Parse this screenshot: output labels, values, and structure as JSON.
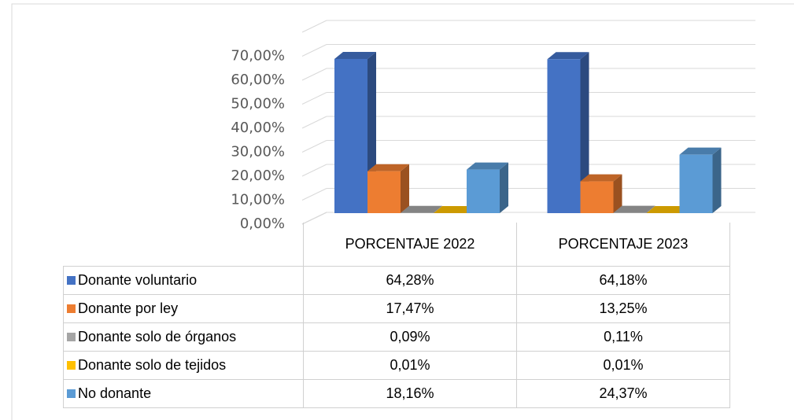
{
  "chart_data": {
    "type": "bar3d",
    "categories": [
      "PORCENTAJE 2022",
      "PORCENTAJE 2023"
    ],
    "series": [
      {
        "name": "Donante voluntario",
        "color": "#4472c4",
        "values": [
          64.28,
          64.18
        ],
        "value_labels": [
          "64,28%",
          "64,18%"
        ]
      },
      {
        "name": "Donante por ley",
        "color": "#ed7d31",
        "values": [
          17.47,
          13.25
        ],
        "value_labels": [
          "17,47%",
          "13,25%"
        ]
      },
      {
        "name": "Donante solo de órganos",
        "color": "#a5a5a5",
        "values": [
          0.09,
          0.11
        ],
        "value_labels": [
          "0,09%",
          "0,11%"
        ]
      },
      {
        "name": "Donante solo de tejidos",
        "color": "#ffc000",
        "values": [
          0.01,
          0.01
        ],
        "value_labels": [
          "0,01%",
          "0,01%"
        ]
      },
      {
        "name": "No donante",
        "color": "#5b9bd5",
        "values": [
          18.16,
          24.37
        ],
        "value_labels": [
          "18,16%",
          "24,37%"
        ]
      }
    ],
    "ylim": [
      0,
      80
    ],
    "yticks": [
      {
        "value": 0,
        "label": "0,00%"
      },
      {
        "value": 10,
        "label": "10,00%"
      },
      {
        "value": 20,
        "label": "20,00%"
      },
      {
        "value": 30,
        "label": "30,00%"
      },
      {
        "value": 40,
        "label": "40,00%"
      },
      {
        "value": 50,
        "label": "50,00%"
      },
      {
        "value": 60,
        "label": "60,00%"
      },
      {
        "value": 70,
        "label": "70,00%"
      }
    ],
    "grid": true
  }
}
